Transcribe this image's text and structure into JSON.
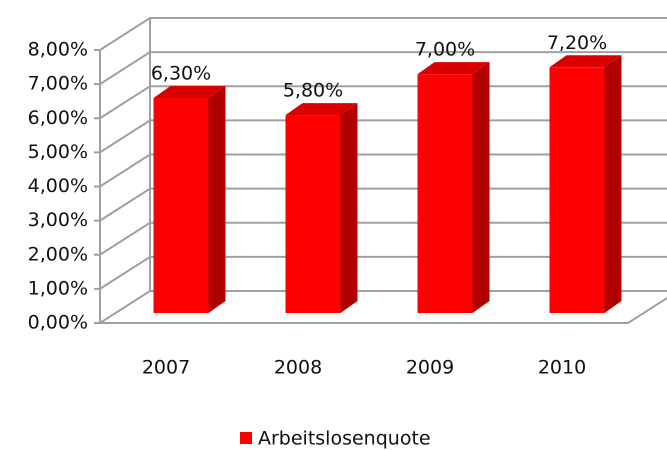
{
  "chart_data": {
    "type": "bar3d",
    "categories": [
      "2007",
      "2008",
      "2009",
      "2010"
    ],
    "series": [
      {
        "name": "Arbeitslosenquote",
        "color": "#ff0000",
        "values": [
          6.3,
          5.8,
          7.0,
          7.2
        ],
        "value_labels": [
          "6,30%",
          "5,80%",
          "7,00%",
          "7,20%"
        ]
      }
    ],
    "ylim": [
      0,
      8
    ],
    "yticks": [
      {
        "value": 0,
        "label": "0,00%"
      },
      {
        "value": 1,
        "label": "1,00%"
      },
      {
        "value": 2,
        "label": "2,00%"
      },
      {
        "value": 3,
        "label": "3,00%"
      },
      {
        "value": 4,
        "label": "4,00%"
      },
      {
        "value": 5,
        "label": "5,00%"
      },
      {
        "value": 6,
        "label": "6,00%"
      },
      {
        "value": 7,
        "label": "7,00%"
      },
      {
        "value": 8,
        "label": "8,00%"
      }
    ],
    "grid": true,
    "legend": "bottom"
  }
}
